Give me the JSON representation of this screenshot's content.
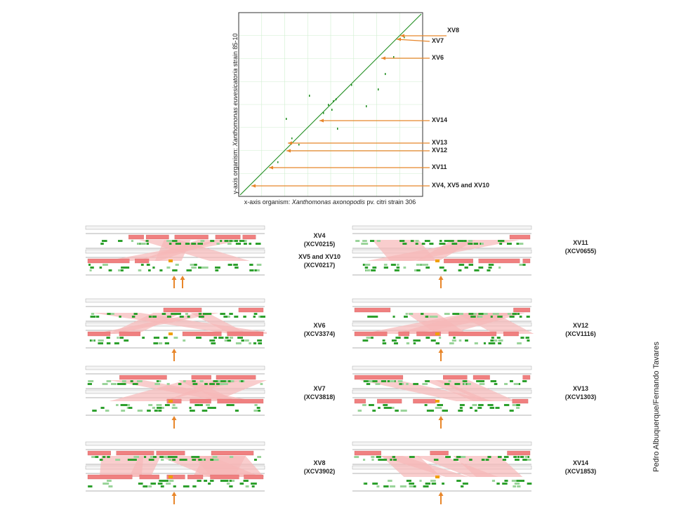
{
  "dotplot": {
    "x_axis": {
      "prefix": "x-axis organism: ",
      "organism": "Xanthomonas axonopodis",
      "suffix": " pv. citri strain 306"
    },
    "y_axis": {
      "prefix": "y-axis organism: ",
      "organism": "Xanthomonas euvesicatoria",
      "suffix": " strain 85-10"
    },
    "markers": [
      {
        "label": "XV8"
      },
      {
        "label": "XV7"
      },
      {
        "label": "XV6"
      },
      {
        "label": "XV14"
      },
      {
        "label": "XV13"
      },
      {
        "label": "XV12"
      },
      {
        "label": "XV11"
      },
      {
        "label": "XV4, XV5 and XV10"
      }
    ],
    "colors": {
      "dots": "#1e8c1e",
      "grid": "#cfeecf",
      "arrow": "#e8862a"
    }
  },
  "panels": [
    {
      "label": "XV4\n(XCV0215)",
      "label2": "XV5 and XV10\n(XCV0217)",
      "arrows": 2
    },
    {
      "label": "XV11\n(XCV0655)",
      "arrows": 1
    },
    {
      "label": "XV6\n(XCV3374)",
      "arrows": 1
    },
    {
      "label": "XV12\n(XCV1116)",
      "arrows": 1
    },
    {
      "label": "XV7\n(XCV3818)",
      "arrows": 1
    },
    {
      "label": "XV13\n(XCV1303)",
      "arrows": 1
    },
    {
      "label": "XV8\n(XCV3902)",
      "arrows": 1
    },
    {
      "label": "XV14\n(XCV1853)",
      "arrows": 1
    }
  ],
  "credit": "Pedro Albuquerque/Fernando Tavares",
  "colors": {
    "block": "#f08080",
    "link": "#f6b8b8",
    "gene": "#2da02d",
    "gene_light": "#9ad49a",
    "highlight": "#f0a000"
  }
}
